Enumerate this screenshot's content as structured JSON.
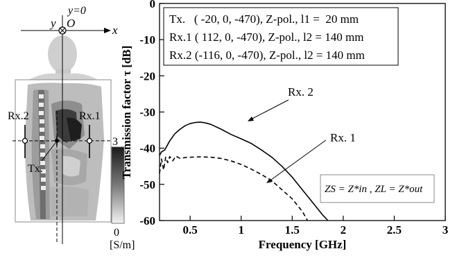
{
  "left_panel": {
    "coord_y0": "y=0",
    "coord_y": "y",
    "coord_O": "O",
    "coord_x": "x",
    "label_rx2": "Rx.2",
    "label_rx1": "Rx.1",
    "label_tx": "Tx.",
    "colorbar_max": "3",
    "colorbar_min": "0",
    "colorbar_unit": "[S/m]"
  },
  "chart_data": {
    "type": "line",
    "xlabel": "Frequency [GHz]",
    "ylabel": "Transmission factor τ [dB]",
    "xlim": [
      0.2,
      3
    ],
    "ylim": [
      -60,
      0
    ],
    "xticks": [
      0.5,
      1,
      1.5,
      2,
      2.5,
      3
    ],
    "yticks": [
      0,
      -10,
      -20,
      -30,
      -40,
      -50,
      -60
    ],
    "grid": false,
    "legend_box": [
      "Tx.   ( -20, 0, -470), Z-pol., l1 =  20 mm",
      "Rx.1 ( 112, 0, -470), Z-pol., l2 = 140 mm",
      "Rx.2 (-116, 0, -470), Z-pol., l2 = 140 mm"
    ],
    "legend_placement": "top-left",
    "annotations": {
      "rx2": "Rx. 2",
      "rx1": "Rx. 1",
      "condition": "ZS = Z*in , ZL = Z*out"
    },
    "series": [
      {
        "name": "Rx. 2",
        "style": "solid",
        "x": [
          0.2,
          0.22,
          0.25,
          0.3,
          0.35,
          0.4,
          0.45,
          0.5,
          0.55,
          0.6,
          0.65,
          0.7,
          0.8,
          0.9,
          1.0,
          1.1,
          1.2,
          1.3,
          1.4,
          1.5,
          1.6,
          1.7,
          1.8,
          1.85
        ],
        "values": [
          -42,
          -41,
          -40.5,
          -38,
          -36,
          -34.8,
          -33.8,
          -33.2,
          -32.9,
          -32.8,
          -33,
          -33.4,
          -34.7,
          -36.2,
          -37.4,
          -38.7,
          -40.5,
          -42.5,
          -45,
          -48,
          -51.5,
          -55,
          -58.5,
          -60
        ]
      },
      {
        "name": "Rx. 1",
        "style": "dashed",
        "x": [
          0.2,
          0.22,
          0.24,
          0.26,
          0.28,
          0.3,
          0.33,
          0.36,
          0.4,
          0.45,
          0.5,
          0.6,
          0.7,
          0.8,
          0.9,
          1.0,
          1.1,
          1.2,
          1.3,
          1.4,
          1.5,
          1.6,
          1.65
        ],
        "values": [
          -47,
          -43,
          -46,
          -42.5,
          -44,
          -42.3,
          -43.5,
          -42.2,
          -42.8,
          -42.6,
          -42.5,
          -42.4,
          -42.5,
          -42.8,
          -43.5,
          -44.5,
          -45.8,
          -47.3,
          -49,
          -51.5,
          -54,
          -57.5,
          -60
        ]
      }
    ]
  }
}
